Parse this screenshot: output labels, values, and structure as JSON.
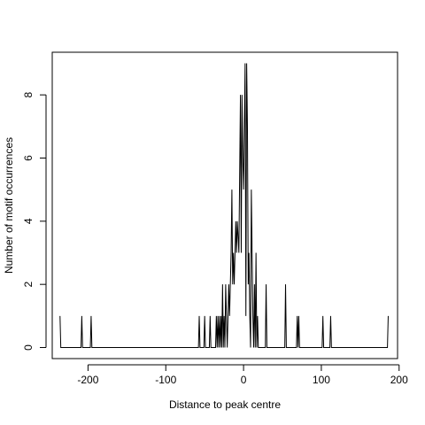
{
  "chart_data": {
    "type": "line",
    "title": "",
    "xlabel": "Distance to peak centre",
    "ylabel": "Number of motif occurrences",
    "xlim": [
      -246,
      198
    ],
    "ylim": [
      -0.35,
      9.35
    ],
    "xticks": [
      -200,
      -100,
      0,
      100,
      200
    ],
    "xtick_labels": [
      "-200",
      "-100",
      "0",
      "100",
      "200"
    ],
    "yticks": [
      0,
      2,
      4,
      6,
      8
    ],
    "ytick_labels": [
      "0",
      "2",
      "4",
      "6",
      "8"
    ],
    "grid": false,
    "series": [
      {
        "points": [
          [
            -236,
            1
          ],
          [
            -235,
            0
          ],
          [
            -209,
            0
          ],
          [
            -208,
            1
          ],
          [
            -207,
            0
          ],
          [
            -197,
            0
          ],
          [
            -196,
            1
          ],
          [
            -195,
            0
          ],
          [
            -58,
            0
          ],
          [
            -57,
            1
          ],
          [
            -56,
            0
          ],
          [
            -51,
            0
          ],
          [
            -50,
            1
          ],
          [
            -49,
            0
          ],
          [
            -44,
            0
          ],
          [
            -43,
            1
          ],
          [
            -42,
            0
          ],
          [
            -36,
            0
          ],
          [
            -35,
            1
          ],
          [
            -34,
            0
          ],
          [
            -33,
            1
          ],
          [
            -32,
            0
          ],
          [
            -31,
            1
          ],
          [
            -30,
            0
          ],
          [
            -29,
            1
          ],
          [
            -28,
            0
          ],
          [
            -27,
            2
          ],
          [
            -26,
            0
          ],
          [
            -25,
            1
          ],
          [
            -24,
            0
          ],
          [
            -23,
            2
          ],
          [
            -22,
            1
          ],
          [
            -21,
            0
          ],
          [
            -20,
            1
          ],
          [
            -19,
            2
          ],
          [
            -18,
            1
          ],
          [
            -17,
            2
          ],
          [
            -16,
            3
          ],
          [
            -15,
            5
          ],
          [
            -14,
            2
          ],
          [
            -13,
            3
          ],
          [
            -12,
            2
          ],
          [
            -10,
            4
          ],
          [
            -9,
            3
          ],
          [
            -8,
            4
          ],
          [
            -6,
            3
          ],
          [
            -4,
            8
          ],
          [
            -3,
            3
          ],
          [
            -2,
            8
          ],
          [
            -1,
            6
          ],
          [
            0,
            5
          ],
          [
            1,
            7
          ],
          [
            2,
            9
          ],
          [
            3,
            1
          ],
          [
            4,
            9
          ],
          [
            5,
            7
          ],
          [
            6,
            2
          ],
          [
            7,
            3
          ],
          [
            8,
            1
          ],
          [
            9,
            0
          ],
          [
            10,
            5
          ],
          [
            11,
            3
          ],
          [
            12,
            1
          ],
          [
            13,
            0
          ],
          [
            14,
            2
          ],
          [
            15,
            0
          ],
          [
            16,
            3
          ],
          [
            17,
            0
          ],
          [
            18,
            1
          ],
          [
            19,
            0
          ],
          [
            28,
            0
          ],
          [
            29,
            2
          ],
          [
            30,
            0
          ],
          [
            53,
            0
          ],
          [
            54,
            2
          ],
          [
            55,
            0
          ],
          [
            68,
            0
          ],
          [
            69,
            1
          ],
          [
            70,
            0
          ],
          [
            71,
            1
          ],
          [
            72,
            0
          ],
          [
            101,
            0
          ],
          [
            102,
            1
          ],
          [
            103,
            0
          ],
          [
            111,
            0
          ],
          [
            112,
            1
          ],
          [
            113,
            0
          ],
          [
            185,
            0
          ],
          [
            186,
            1
          ]
        ]
      }
    ]
  }
}
